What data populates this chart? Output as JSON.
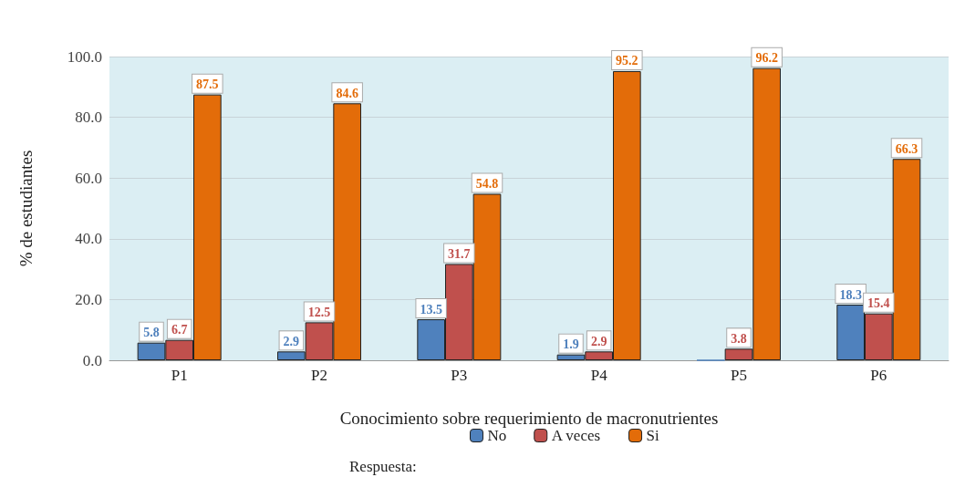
{
  "chart_data": {
    "type": "bar",
    "xlabel": "Conocimiento sobre requerimiento de macronutrientes",
    "ylabel": "% de estudiantes",
    "legend_title": "Respuesta:",
    "categories": [
      "P1",
      "P2",
      "P3",
      "P4",
      "P5",
      "P6"
    ],
    "series": [
      {
        "name": "No",
        "color": "#4f81bd",
        "values": [
          5.8,
          2.9,
          13.5,
          1.9,
          0,
          18.3
        ],
        "value_labels": [
          "5.8",
          "2.9",
          "13.5",
          "1.9",
          null,
          "18.3"
        ]
      },
      {
        "name": "A veces",
        "color": "#c0504d",
        "values": [
          6.7,
          12.5,
          31.7,
          2.9,
          3.8,
          15.4
        ],
        "value_labels": [
          "6.7",
          "12.5",
          "31.7",
          "2.9",
          "3.8",
          "15.4"
        ]
      },
      {
        "name": "Si",
        "color": "#e36c09",
        "values": [
          87.5,
          84.6,
          54.8,
          95.2,
          96.2,
          66.3
        ],
        "value_labels": [
          "87.5",
          "84.6",
          "54.8",
          "95.2",
          "96.2",
          "66.3"
        ]
      }
    ],
    "ylim": [
      0,
      100
    ],
    "yticks": [
      {
        "value": 0,
        "label": "0.0"
      },
      {
        "value": 20,
        "label": "20.0"
      },
      {
        "value": 40,
        "label": "40.0"
      },
      {
        "value": 60,
        "label": "60.0"
      },
      {
        "value": 80,
        "label": "80.0"
      },
      {
        "value": 100,
        "label": "100.0"
      }
    ],
    "grid": "y",
    "legend": "bottom"
  }
}
